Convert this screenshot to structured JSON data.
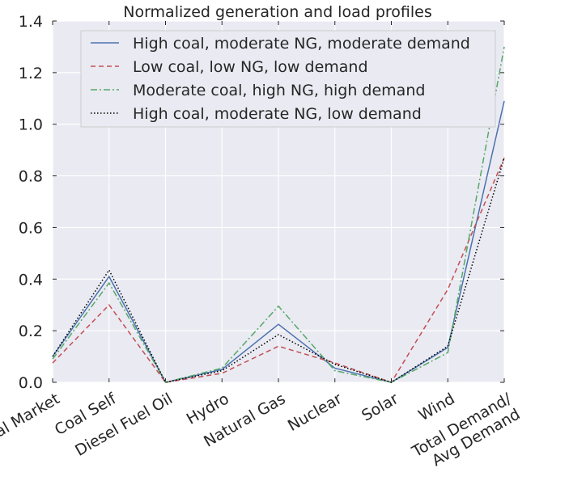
{
  "chart_data": {
    "type": "line",
    "title": "Normalized generation and load profiles",
    "xlabel": "",
    "ylabel": "",
    "ylim": [
      0.0,
      1.4
    ],
    "yticks": [
      "0.0",
      "0.2",
      "0.4",
      "0.6",
      "0.8",
      "1.0",
      "1.2",
      "1.4"
    ],
    "categories": [
      [
        "Coal Market"
      ],
      [
        "Coal Self"
      ],
      [
        "Diesel Fuel Oil"
      ],
      [
        "Hydro"
      ],
      [
        "Natural Gas"
      ],
      [
        "Nuclear"
      ],
      [
        "Solar"
      ],
      [
        "Wind"
      ],
      [
        "Total Demand/",
        "Avg Demand"
      ]
    ],
    "grid": true,
    "legend_position": "top-right",
    "series": [
      {
        "name": "High coal, moderate NG, moderate demand",
        "color": "#4c72b0",
        "dash": "solid",
        "values": [
          0.1,
          0.41,
          0.0,
          0.05,
          0.225,
          0.055,
          0.0,
          0.135,
          1.09
        ]
      },
      {
        "name": "Low coal, low NG, low demand",
        "color": "#c44e52",
        "dash": "dashed",
        "values": [
          0.075,
          0.3,
          0.0,
          0.035,
          0.14,
          0.075,
          0.0,
          0.36,
          0.87
        ]
      },
      {
        "name": "Moderate coal, high NG, high demand",
        "color": "#55a868",
        "dash": "dashdot",
        "values": [
          0.09,
          0.385,
          0.0,
          0.055,
          0.295,
          0.045,
          0.0,
          0.115,
          1.3
        ]
      },
      {
        "name": "High coal, moderate NG, low demand",
        "color": "#000000",
        "dash": "dotted",
        "values": [
          0.1,
          0.435,
          0.0,
          0.045,
          0.185,
          0.07,
          0.0,
          0.14,
          0.87
        ]
      }
    ]
  }
}
